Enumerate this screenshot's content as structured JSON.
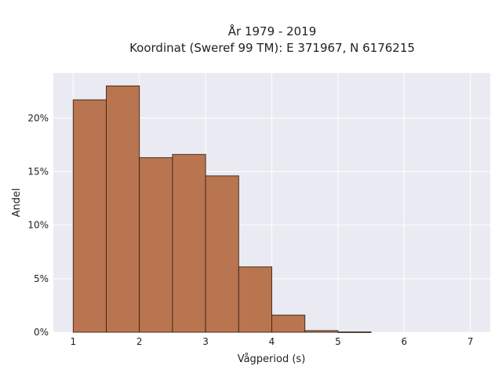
{
  "colors": {
    "plot_background": "#EAEAF2",
    "grid": "#FFFFFF",
    "bar_fill": "#B9754F",
    "bar_edge": "#3A2418"
  },
  "chart_data": {
    "type": "bar",
    "title": [
      "År 1979 - 2019",
      "Koordinat (Sweref 99 TM): E 371967, N 6176215"
    ],
    "xlabel": "Vågperiod (s)",
    "ylabel": "Andel",
    "xlim": [
      0.7,
      7.3
    ],
    "ylim": [
      0,
      24.2
    ],
    "x_ticks": [
      1,
      2,
      3,
      4,
      5,
      6,
      7
    ],
    "x_tick_labels": [
      "1",
      "2",
      "3",
      "4",
      "5",
      "6",
      "7"
    ],
    "y_ticks": [
      0,
      5,
      10,
      15,
      20
    ],
    "y_tick_labels": [
      "0%",
      "5%",
      "10%",
      "15%",
      "20%"
    ],
    "grid": true,
    "bin_edges": [
      1.0,
      1.5,
      2.0,
      2.5,
      3.0,
      3.5,
      4.0,
      4.5,
      5.0,
      5.5
    ],
    "values_percent": [
      21.7,
      23.0,
      16.3,
      16.6,
      14.6,
      6.1,
      1.6,
      0.15,
      0.03
    ]
  }
}
